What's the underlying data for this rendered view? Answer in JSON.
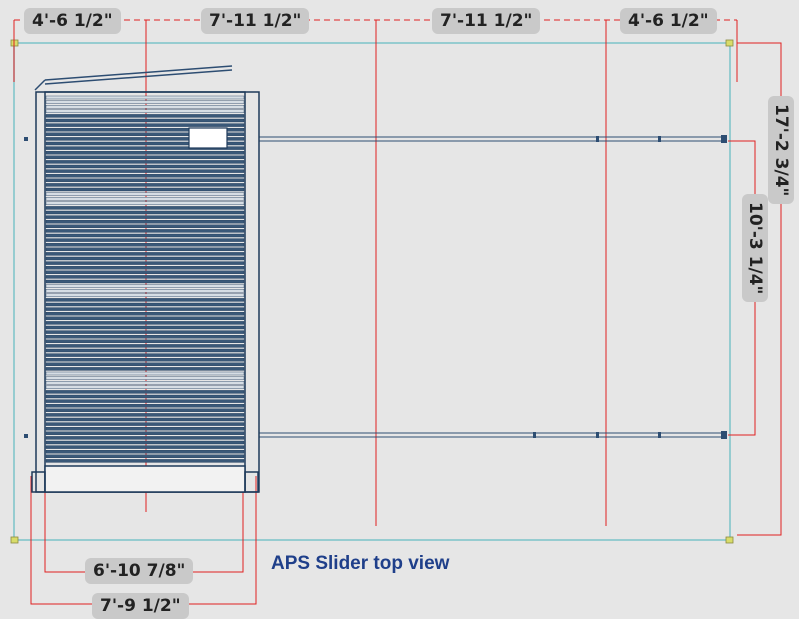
{
  "title": "APS Slider top view",
  "dimensions": {
    "top_1": "4'-6 1/2\"",
    "top_2": "7'-11 1/2\"",
    "top_3": "7'-11 1/2\"",
    "top_4": "4'-6 1/2\"",
    "overall_depth": "17'-2 3/4\"",
    "track_length": "10'-3 1/4\"",
    "inner_width": "6'-10 7/8\"",
    "outer_width": "7'-9 1/2\""
  },
  "colors": {
    "background": "#e6e6e6",
    "outline": "#7cc4c8",
    "dimension_line": "#e02020",
    "structure": "#1e3a5a",
    "label_bg": "#c9c9c9",
    "caption": "#1f3f8a"
  }
}
